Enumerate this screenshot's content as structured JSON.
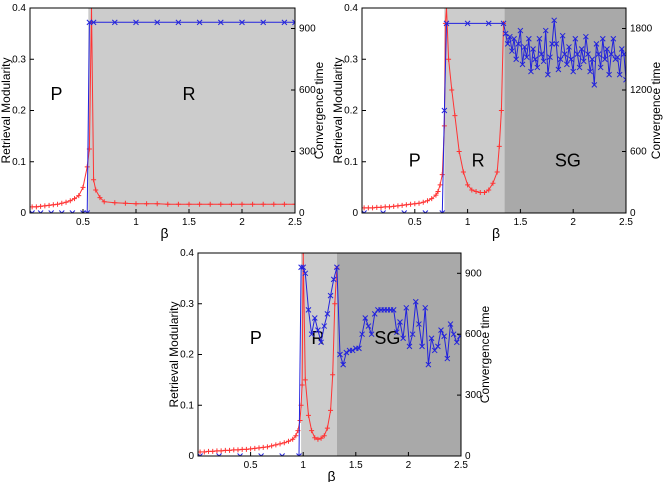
{
  "chart_data": [
    {
      "type": "line",
      "id": "top-left",
      "xlabel": "β",
      "ylabel_left": "Retrieval Modularity",
      "ylabel_right": "Convergence time",
      "xlim": [
        0,
        2.5
      ],
      "ylim_left": [
        0,
        0.4
      ],
      "ylim_right": [
        0,
        1000
      ],
      "xticks": [
        "0.5",
        "1",
        "1.5",
        "2",
        "2.5"
      ],
      "xtick_values": [
        0.5,
        1,
        1.5,
        2,
        2.5
      ],
      "yticks_left": [
        "0",
        "0.1",
        "0.2",
        "0.3",
        "0.4"
      ],
      "ytick_values_left": [
        0,
        0.1,
        0.2,
        0.3,
        0.4
      ],
      "yticks_right": [
        "0",
        "300",
        "600",
        "900"
      ],
      "ytick_values_right": [
        0,
        300,
        600,
        900
      ],
      "regions": [
        {
          "label": "P",
          "from": 0,
          "to": 0.55,
          "shade": "none",
          "label_x": 0.25,
          "label_y": 0.23
        },
        {
          "label": "R",
          "from": 0.55,
          "to": 2.5,
          "shade": "light",
          "label_x": 1.5,
          "label_y": 0.23
        }
      ],
      "series": [
        {
          "name": "Retrieval Modularity",
          "axis": "left",
          "color": "#ff3333",
          "marker": "+",
          "x": [
            0.02,
            0.06,
            0.1,
            0.14,
            0.18,
            0.22,
            0.26,
            0.3,
            0.34,
            0.38,
            0.42,
            0.46,
            0.5,
            0.54,
            0.56,
            0.58,
            0.6,
            0.62,
            0.66,
            0.7,
            0.8,
            0.9,
            1,
            1.1,
            1.2,
            1.3,
            1.4,
            1.5,
            1.6,
            1.7,
            1.8,
            1.9,
            2,
            2.1,
            2.2,
            2.3,
            2.4,
            2.5
          ],
          "y": [
            0.012,
            0.012,
            0.013,
            0.014,
            0.015,
            0.016,
            0.017,
            0.019,
            0.021,
            0.024,
            0.028,
            0.034,
            0.05,
            0.09,
            0.125,
            0.4,
            0.065,
            0.045,
            0.03,
            0.022,
            0.02,
            0.019,
            0.018,
            0.018,
            0.018,
            0.017,
            0.017,
            0.017,
            0.017,
            0.017,
            0.017,
            0.017,
            0.017,
            0.017,
            0.017,
            0.017,
            0.017,
            0.017
          ]
        },
        {
          "name": "Convergence time",
          "axis": "right",
          "color": "#2222dd",
          "marker": "x",
          "x": [
            0.02,
            0.1,
            0.2,
            0.3,
            0.4,
            0.5,
            0.54,
            0.56,
            0.6,
            0.8,
            1,
            1.2,
            1.4,
            1.6,
            1.8,
            2,
            2.2,
            2.4,
            2.5
          ],
          "y": [
            0,
            0,
            0,
            0,
            0,
            0,
            0,
            930,
            930,
            930,
            930,
            930,
            930,
            930,
            930,
            930,
            930,
            930,
            930
          ]
        }
      ]
    },
    {
      "type": "line",
      "id": "top-right",
      "xlabel": "β",
      "ylabel_left": "Retrieval Modularity",
      "ylabel_right": "Convergence time",
      "xlim": [
        0,
        2.5
      ],
      "ylim_left": [
        0,
        0.4
      ],
      "ylim_right": [
        0,
        2000
      ],
      "xticks": [
        "0.5",
        "1",
        "1.5",
        "2",
        "2.5"
      ],
      "xtick_values": [
        0.5,
        1,
        1.5,
        2,
        2.5
      ],
      "yticks_left": [
        "0",
        "0.1",
        "0.2",
        "0.3",
        "0.4"
      ],
      "ytick_values_left": [
        0,
        0.1,
        0.2,
        0.3,
        0.4
      ],
      "yticks_right": [
        "0",
        "600",
        "1200",
        "1800"
      ],
      "ytick_values_right": [
        0,
        600,
        1200,
        1800
      ],
      "regions": [
        {
          "label": "P",
          "from": 0,
          "to": 0.78,
          "shade": "none",
          "label_x": 0.5,
          "label_y": 0.1
        },
        {
          "label": "R",
          "from": 0.78,
          "to": 1.35,
          "shade": "light",
          "label_x": 1.1,
          "label_y": 0.1
        },
        {
          "label": "SG",
          "from": 1.35,
          "to": 2.5,
          "shade": "dark",
          "label_x": 1.95,
          "label_y": 0.1
        }
      ],
      "series": [
        {
          "name": "Retrieval Modularity",
          "axis": "left",
          "color": "#ff3333",
          "marker": "+",
          "x": [
            0.02,
            0.06,
            0.1,
            0.14,
            0.18,
            0.22,
            0.26,
            0.3,
            0.34,
            0.38,
            0.42,
            0.46,
            0.5,
            0.54,
            0.58,
            0.62,
            0.66,
            0.7,
            0.72,
            0.74,
            0.76,
            0.78,
            0.79,
            0.8,
            0.82,
            0.85,
            0.88,
            0.92,
            0.96,
            1,
            1.04,
            1.08,
            1.12,
            1.16,
            1.2,
            1.24,
            1.28,
            1.3,
            1.32,
            1.34
          ],
          "y": [
            0.01,
            0.01,
            0.01,
            0.011,
            0.011,
            0.012,
            0.012,
            0.013,
            0.014,
            0.015,
            0.016,
            0.017,
            0.018,
            0.019,
            0.021,
            0.024,
            0.028,
            0.035,
            0.042,
            0.055,
            0.075,
            0.17,
            0.37,
            0.4,
            0.3,
            0.24,
            0.19,
            0.12,
            0.08,
            0.055,
            0.045,
            0.042,
            0.04,
            0.04,
            0.045,
            0.058,
            0.08,
            0.13,
            0.2,
            0.37
          ]
        },
        {
          "name": "Convergence time",
          "axis": "right",
          "color": "#2222dd",
          "marker": "x",
          "x": [
            0.02,
            0.2,
            0.4,
            0.6,
            0.76,
            0.78,
            0.8,
            1,
            1.2,
            1.34,
            1.36,
            1.38,
            1.4,
            1.42,
            1.44,
            1.46,
            1.48,
            1.5,
            1.52,
            1.54,
            1.56,
            1.58,
            1.6,
            1.62,
            1.64,
            1.66,
            1.68,
            1.7,
            1.72,
            1.74,
            1.76,
            1.78,
            1.8,
            1.82,
            1.84,
            1.86,
            1.88,
            1.9,
            1.92,
            1.94,
            1.96,
            1.98,
            2,
            2.02,
            2.04,
            2.06,
            2.08,
            2.1,
            2.12,
            2.14,
            2.16,
            2.18,
            2.2,
            2.22,
            2.24,
            2.26,
            2.28,
            2.3,
            2.32,
            2.34,
            2.36,
            2.38,
            2.4,
            2.42,
            2.44,
            2.46,
            2.48,
            2.5
          ],
          "y": [
            0,
            0,
            0,
            0,
            0,
            1000,
            1850,
            1850,
            1850,
            1850,
            1750,
            1650,
            1720,
            1580,
            1700,
            1500,
            1650,
            1780,
            1450,
            1620,
            1520,
            1700,
            1380,
            1600,
            1500,
            1420,
            1700,
            1550,
            1480,
            1780,
            1350,
            1520,
            1650,
            1880,
            1650,
            1400,
            1500,
            1730,
            1550,
            1450,
            1620,
            1500,
            1380,
            1700,
            1550,
            1420,
            1600,
            1480,
            1720,
            1550,
            1380,
            1500,
            1250,
            1650,
            1550,
            1420,
            1700,
            1500,
            1600,
            1350,
            1550,
            1700,
            1500,
            1520,
            1350,
            1600,
            1550,
            1300
          ]
        }
      ]
    },
    {
      "type": "line",
      "id": "bottom",
      "xlabel": "β",
      "ylabel_left": "Retrieval Modularity",
      "ylabel_right": "Convergence time",
      "xlim": [
        0,
        2.5
      ],
      "ylim_left": [
        0,
        0.4
      ],
      "ylim_right": [
        0,
        1000
      ],
      "xticks": [
        "0.5",
        "1",
        "1.5",
        "2",
        "2.5"
      ],
      "xtick_values": [
        0.5,
        1,
        1.5,
        2,
        2.5
      ],
      "yticks_left": [
        "0",
        "0.1",
        "0.2",
        "0.3",
        "0.4"
      ],
      "ytick_values_left": [
        0,
        0.1,
        0.2,
        0.3,
        0.4
      ],
      "yticks_right": [
        "0",
        "300",
        "600",
        "900"
      ],
      "ytick_values_right": [
        0,
        300,
        600,
        900
      ],
      "regions": [
        {
          "label": "P",
          "from": 0,
          "to": 0.98,
          "shade": "none",
          "label_x": 0.55,
          "label_y": 0.23
        },
        {
          "label": "R",
          "from": 0.98,
          "to": 1.32,
          "shade": "light",
          "label_x": 1.14,
          "label_y": 0.23
        },
        {
          "label": "SG",
          "from": 1.32,
          "to": 2.5,
          "shade": "dark",
          "label_x": 1.8,
          "label_y": 0.23
        }
      ],
      "series": [
        {
          "name": "Retrieval Modularity",
          "axis": "left",
          "color": "#ff3333",
          "marker": "+",
          "x": [
            0.02,
            0.06,
            0.1,
            0.14,
            0.18,
            0.22,
            0.26,
            0.3,
            0.34,
            0.38,
            0.42,
            0.46,
            0.5,
            0.54,
            0.58,
            0.62,
            0.66,
            0.7,
            0.74,
            0.78,
            0.82,
            0.86,
            0.9,
            0.93,
            0.95,
            0.97,
            0.98,
            0.99,
            1,
            1.02,
            1.05,
            1.08,
            1.11,
            1.14,
            1.17,
            1.2,
            1.23,
            1.26,
            1.28,
            1.3,
            1.32
          ],
          "y": [
            0.008,
            0.008,
            0.009,
            0.009,
            0.01,
            0.01,
            0.011,
            0.011,
            0.012,
            0.012,
            0.013,
            0.013,
            0.014,
            0.015,
            0.016,
            0.017,
            0.018,
            0.02,
            0.022,
            0.024,
            0.026,
            0.029,
            0.033,
            0.04,
            0.05,
            0.07,
            0.1,
            0.14,
            0.4,
            0.15,
            0.08,
            0.05,
            0.036,
            0.033,
            0.035,
            0.04,
            0.055,
            0.09,
            0.16,
            0.3,
            0.37
          ]
        },
        {
          "name": "Convergence time",
          "axis": "right",
          "color": "#2222dd",
          "marker": "x",
          "x": [
            0.02,
            0.2,
            0.4,
            0.6,
            0.8,
            0.96,
            0.98,
            1,
            1.02,
            1.05,
            1.08,
            1.11,
            1.14,
            1.17,
            1.2,
            1.23,
            1.26,
            1.29,
            1.32,
            1.35,
            1.38,
            1.41,
            1.44,
            1.47,
            1.5,
            1.53,
            1.56,
            1.59,
            1.62,
            1.65,
            1.68,
            1.71,
            1.74,
            1.77,
            1.8,
            1.83,
            1.86,
            1.89,
            1.92,
            1.95,
            1.98,
            2.01,
            2.04,
            2.07,
            2.1,
            2.13,
            2.16,
            2.19,
            2.22,
            2.25,
            2.28,
            2.31,
            2.34,
            2.37,
            2.4,
            2.43,
            2.46,
            2.49
          ],
          "y": [
            0,
            0,
            0,
            0,
            0,
            0,
            930,
            930,
            900,
            720,
            600,
            680,
            620,
            560,
            640,
            700,
            790,
            870,
            930,
            500,
            450,
            510,
            520,
            520,
            530,
            530,
            600,
            680,
            640,
            600,
            700,
            720,
            720,
            720,
            720,
            720,
            720,
            610,
            660,
            580,
            730,
            540,
            600,
            760,
            650,
            540,
            730,
            450,
            580,
            520,
            540,
            620,
            590,
            480,
            650,
            600,
            560,
            590
          ]
        }
      ]
    }
  ]
}
